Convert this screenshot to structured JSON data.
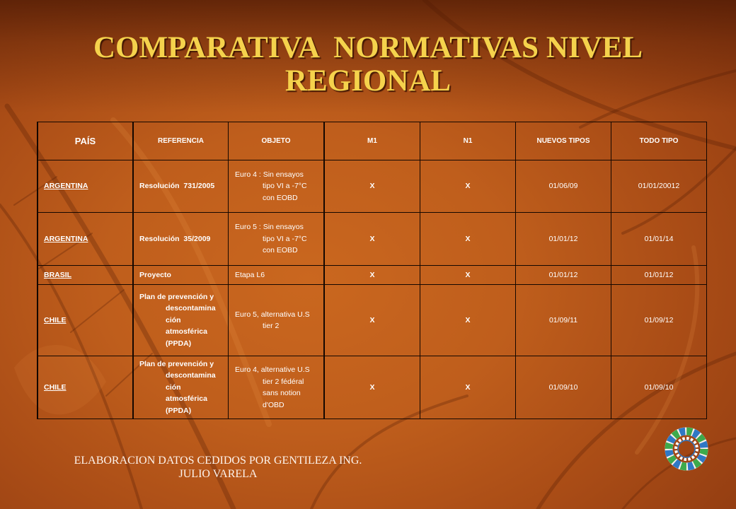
{
  "slide": {
    "title": "COMPARATIVA  NORMATIVAS NIVEL REGIONAL",
    "footer": "ELABORACION DATOS CEDIDOS POR GENTILEZA ING. JULIO VARELA",
    "logo_icon": "people-ring-logo"
  },
  "theme": {
    "title_color": "#F5D24C",
    "text_color": "#FFFFFF",
    "rule_color": "#140700",
    "footer_color": "#FDF3EC",
    "logo_green": "#3DAA4C",
    "logo_blue": "#2F78C4"
  },
  "table": {
    "headers": [
      "PAÍS",
      "REFERENCIA",
      "OBJETO",
      "M1",
      "N1",
      "NUEVOS TIPOS",
      "TODO TIPO"
    ],
    "rows": [
      {
        "pais": "ARGENTINA",
        "referencia": [
          "Resolución  731/2005"
        ],
        "objeto": [
          "Euro 4 : Sin ensayos",
          "tipo VI a -7°C",
          "con EOBD"
        ],
        "m1": "X",
        "n1": "X",
        "nuevos_tipos": "01/06/09",
        "todo_tipo": "01/01/20012"
      },
      {
        "pais": "ARGENTINA",
        "referencia": [
          "Resolución  35/2009"
        ],
        "objeto": [
          "Euro 5 : Sin ensayos",
          "tipo VI a -7°C",
          "con EOBD"
        ],
        "m1": "X",
        "n1": "X",
        "nuevos_tipos": "01/01/12",
        "todo_tipo": "01/01/14"
      },
      {
        "pais": "BRASIL",
        "referencia": [
          "Proyecto"
        ],
        "objeto": [
          "Etapa L6"
        ],
        "m1": "X",
        "n1": "X",
        "nuevos_tipos": "01/01/12",
        "todo_tipo": "01/01/12"
      },
      {
        "pais": "CHILE",
        "referencia": [
          "Plan de prevención y",
          "descontamina",
          "ción",
          "atmosférica",
          "(PPDA)"
        ],
        "objeto": [
          "Euro 5, alternativa U.S",
          "tier 2"
        ],
        "m1": "X",
        "n1": "X",
        "nuevos_tipos": "01/09/11",
        "todo_tipo": "01/09/12"
      },
      {
        "pais": "CHILE",
        "referencia": [
          "Plan de prevención y",
          "descontamina",
          "ción",
          "atmosférica",
          "(PPDA)"
        ],
        "objeto": [
          "Euro 4, alternative U.S",
          "tier 2 fédéral",
          "sans notion",
          "d'OBD"
        ],
        "m1": "X",
        "n1": "X",
        "nuevos_tipos": "01/09/10",
        "todo_tipo": "01/09/10"
      }
    ]
  }
}
